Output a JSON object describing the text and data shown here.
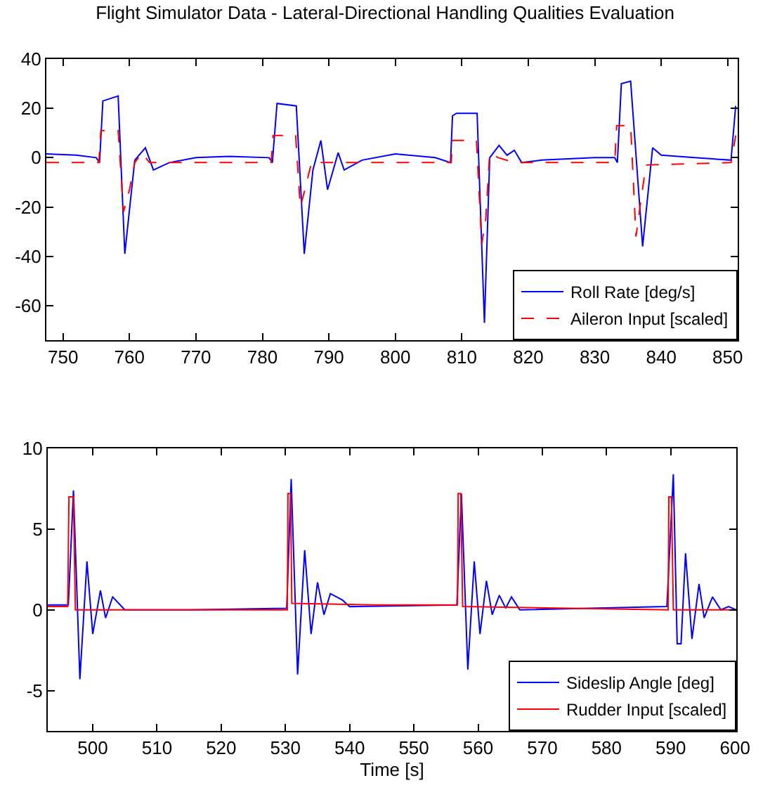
{
  "chart_data": [
    {
      "type": "line",
      "title": "Flight Simulator Data - Lateral-Directional Handling Qualities Evaluation",
      "xlim": [
        747.5,
        851.5
      ],
      "ylim": [
        -74,
        40
      ],
      "xticks": [
        750,
        760,
        770,
        780,
        790,
        800,
        810,
        820,
        830,
        840,
        850
      ],
      "yticks": [
        -60,
        -40,
        -20,
        0,
        20,
        40
      ],
      "grid": false,
      "legend": "bottom right",
      "marker": "none",
      "series": [
        {
          "name": "Roll Rate [deg/s]",
          "color": "#0000ff",
          "line_style": "solid",
          "x": [
            747.5,
            752,
            755,
            755.5,
            756,
            758.3,
            759.3,
            760.8,
            762.4,
            763.6,
            766,
            770,
            775,
            781,
            781.5,
            782.2,
            785.1,
            786.3,
            787.6,
            788.8,
            789.8,
            791.4,
            792.3,
            795,
            800,
            806,
            808.3,
            808.6,
            809.2,
            812.3,
            813.4,
            814.2,
            815.6,
            816.8,
            817.9,
            819,
            822,
            830,
            833,
            833.4,
            834,
            835.4,
            837.2,
            838.7,
            840,
            845,
            850.5,
            851.2
          ],
          "values": [
            1.5,
            1,
            0,
            -2,
            23,
            25,
            -39,
            -1,
            4,
            -5,
            -2,
            0,
            0.5,
            0,
            -2,
            22,
            21,
            -39,
            -5,
            7,
            -13,
            2,
            -5,
            -1,
            1.5,
            0,
            -2,
            17,
            18,
            18,
            -67,
            0,
            5,
            1,
            3,
            -2,
            -1,
            0,
            0,
            -2,
            30,
            31,
            -36,
            4,
            1,
            0,
            -1,
            21
          ]
        },
        {
          "name": "Aileron Input [scaled]",
          "color": "#ff0000",
          "line_style": "dashed",
          "x": [
            747.5,
            755.4,
            755.7,
            758.3,
            759.1,
            760,
            760.8,
            761.9,
            763,
            781.3,
            781.6,
            785,
            785.7,
            786.2,
            787.4,
            808.4,
            808.6,
            812.2,
            813,
            813.6,
            814.2,
            815.5,
            818,
            833,
            833.3,
            835.4,
            836.2,
            836.8,
            837.7,
            850.5,
            851.2
          ],
          "values": [
            -2,
            -2,
            11,
            11,
            -22,
            -13,
            -2,
            2,
            -2,
            -2,
            9,
            9,
            -20,
            -15,
            -2,
            -2,
            7,
            7,
            -35,
            -25,
            2,
            0,
            -2,
            -2,
            13,
            13,
            -32,
            -20,
            -3,
            -2,
            9
          ]
        }
      ]
    },
    {
      "type": "line",
      "xlabel": "Time [s]",
      "xlim": [
        493,
        600.2
      ],
      "ylim": [
        -7.5,
        10
      ],
      "xticks": [
        500,
        510,
        520,
        530,
        540,
        550,
        560,
        570,
        580,
        590,
        600
      ],
      "yticks": [
        -5,
        0,
        5,
        10
      ],
      "grid": false,
      "legend": "bottom right",
      "marker": "none",
      "series": [
        {
          "name": "Sideslip Angle [deg]",
          "color": "#0000ff",
          "line_style": "solid",
          "x": [
            493,
            496.2,
            497,
            498,
            499.1,
            500,
            501.2,
            502,
            503.1,
            505,
            515,
            530.2,
            530.9,
            531.9,
            533,
            534,
            535,
            536,
            537,
            538.9,
            540,
            556.7,
            557.4,
            558.4,
            559.4,
            560.3,
            561.3,
            562.2,
            563.3,
            564.3,
            565.2,
            566.5,
            589.4,
            590.4,
            591,
            591.6,
            592.3,
            593.3,
            594.4,
            595.2,
            596.5,
            597.8,
            599,
            600.2
          ],
          "values": [
            0.3,
            0.3,
            7.4,
            -4.3,
            3,
            -1.5,
            1.2,
            -0.5,
            0.8,
            0,
            0,
            0.1,
            8.1,
            -4,
            3.7,
            -1.5,
            1.7,
            -0.3,
            1,
            0.6,
            0.2,
            0.3,
            7.2,
            -3.7,
            3,
            -1.5,
            1.8,
            -0.3,
            0.9,
            0.1,
            0.8,
            0,
            0.2,
            8.4,
            -2.1,
            -2.1,
            3.5,
            -1.8,
            1.6,
            -0.5,
            0.8,
            0,
            0.2,
            0
          ]
        },
        {
          "name": "Rudder Input [scaled]",
          "color": "#ff0000",
          "line_style": "solid",
          "x": [
            493,
            496.1,
            496.3,
            497,
            497.3,
            530.3,
            530.4,
            530.8,
            531,
            544,
            556.8,
            556.9,
            557.3,
            557.6,
            589.6,
            589.7,
            590.1,
            590.4,
            600.2
          ],
          "values": [
            0.2,
            0.2,
            7,
            7,
            0,
            0,
            7.2,
            7.2,
            0.4,
            0.3,
            0.3,
            7.2,
            7.2,
            0.2,
            0,
            7,
            7,
            0,
            0
          ]
        }
      ]
    }
  ]
}
